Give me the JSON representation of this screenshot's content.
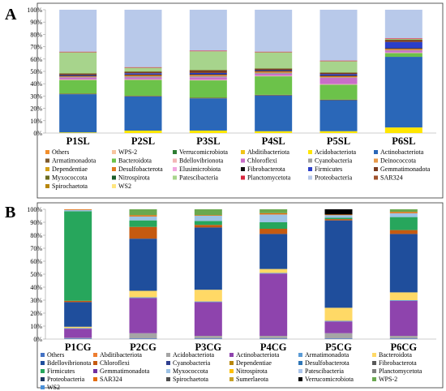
{
  "chart_data": [
    {
      "type": "bar",
      "stacked": true,
      "panel": "A",
      "categories": [
        "P1SL",
        "P2SL",
        "P3SL",
        "P4SL",
        "P5SL",
        "P6SL"
      ],
      "ylim": [
        0,
        100
      ],
      "yticks": [
        "0%",
        "10%",
        "20%",
        "30%",
        "40%",
        "50%",
        "60%",
        "70%",
        "80%",
        "90%",
        "100%"
      ],
      "series": [
        {
          "name": "Others",
          "color": "#f28e2b",
          "values": [
            0,
            0,
            0,
            0,
            0,
            0
          ]
        },
        {
          "name": "WPS-2",
          "color": "#f7c59f",
          "values": [
            0,
            0,
            0,
            0,
            0,
            0
          ]
        },
        {
          "name": "Verrucomicrobiota",
          "color": "#2e7d32",
          "values": [
            0,
            0,
            0,
            0,
            0,
            0
          ]
        },
        {
          "name": "Abditibacteriota",
          "color": "#f0c419",
          "values": [
            0,
            0,
            0,
            0,
            0,
            0
          ]
        },
        {
          "name": "Acidobacteriota",
          "color": "#ffe600",
          "values": [
            0.5,
            2,
            2,
            1.5,
            1.5,
            4.5
          ]
        },
        {
          "name": "Actinobacteriota",
          "color": "#2a67b8",
          "values": [
            31,
            28,
            26,
            29,
            25,
            57
          ]
        },
        {
          "name": "Armatimonadota",
          "color": "#7d5a2e",
          "values": [
            0.5,
            0.5,
            0.5,
            0.5,
            0.5,
            0
          ]
        },
        {
          "name": "Bacteroidota",
          "color": "#6cc24a",
          "values": [
            11,
            13,
            14,
            15,
            12,
            3
          ]
        },
        {
          "name": "Bdellovibrionota",
          "color": "#f2b6b6",
          "values": [
            0.5,
            0.5,
            0.5,
            0.5,
            0.5,
            0.5
          ]
        },
        {
          "name": "Chloroflexi",
          "color": "#c96ec9",
          "values": [
            1.5,
            1.5,
            2,
            1.5,
            5,
            1.5
          ]
        },
        {
          "name": "Cyanobacteria",
          "color": "#9e9e9e",
          "values": [
            0.5,
            1,
            1,
            1,
            0.5,
            0.5
          ]
        },
        {
          "name": "Deinococcota",
          "color": "#e89a4a",
          "values": [
            0,
            0,
            0,
            0,
            0,
            0
          ]
        },
        {
          "name": "Dependentiae",
          "color": "#d4a017",
          "values": [
            0,
            0,
            0,
            0,
            0,
            0
          ]
        },
        {
          "name": "Desulfobacterota",
          "color": "#e07b1f",
          "values": [
            0.5,
            1,
            1,
            1,
            1,
            1
          ]
        },
        {
          "name": "Elusimicrobiota",
          "color": "#f1a6e0",
          "values": [
            0,
            0,
            0,
            0,
            0,
            0
          ]
        },
        {
          "name": "Fibrobacterota",
          "color": "#111111",
          "values": [
            0.5,
            0.5,
            0.5,
            0.5,
            0.5,
            0.5
          ]
        },
        {
          "name": "Firmicutes",
          "color": "#2b3ec9",
          "values": [
            0.5,
            1,
            1,
            0.5,
            1,
            5
          ]
        },
        {
          "name": "Gemmatimonadota",
          "color": "#7a3b1f",
          "values": [
            1,
            1,
            2,
            1,
            1,
            1.5
          ]
        },
        {
          "name": "Myxococcota",
          "color": "#6b6b1f",
          "values": [
            0.5,
            0.5,
            0.5,
            0.5,
            0.5,
            0.5
          ]
        },
        {
          "name": "Nitrospirota",
          "color": "#1a5c2a",
          "values": [
            0,
            0,
            0,
            0,
            0,
            0
          ]
        },
        {
          "name": "Patescibacteria",
          "color": "#a7d48c",
          "values": [
            17,
            3,
            15,
            13,
            9,
            0.5
          ]
        },
        {
          "name": "Planctomycetota",
          "color": "#d7263d",
          "values": [
            0.5,
            0.5,
            0.5,
            0.5,
            0.5,
            0.5
          ]
        },
        {
          "name": "Proteobacteria",
          "color": "#b8c9ea",
          "values": [
            34,
            47,
            33,
            34,
            41,
            23
          ]
        },
        {
          "name": "SAR324",
          "color": "#a0522d",
          "values": [
            0,
            0,
            0,
            0,
            0,
            0
          ]
        },
        {
          "name": "Spirochaetota",
          "color": "#b8860b",
          "values": [
            0,
            0,
            0,
            0,
            0,
            0
          ]
        },
        {
          "name": "WS2",
          "color": "#ffe680",
          "values": [
            0,
            0,
            0,
            0,
            0,
            0
          ]
        }
      ]
    },
    {
      "type": "bar",
      "stacked": true,
      "panel": "B",
      "categories": [
        "P1CG",
        "P2CG",
        "P3CG",
        "P4CG",
        "P5CG",
        "P6CG"
      ],
      "ylim": [
        0,
        100
      ],
      "yticks": [
        "0%",
        "10%",
        "20%",
        "30%",
        "40%",
        "50%",
        "60%",
        "70%",
        "80%",
        "90%",
        "100%"
      ],
      "series": [
        {
          "name": "Others",
          "color": "#4472c4",
          "values": [
            0.5,
            0.5,
            0.5,
            0.5,
            0.5,
            0.5
          ]
        },
        {
          "name": "Abditibacteriota",
          "color": "#ed7d31",
          "values": [
            0,
            0,
            0,
            0,
            0,
            0
          ]
        },
        {
          "name": "Acidobacteriota",
          "color": "#a5a5a5",
          "values": [
            0.5,
            4,
            2,
            2,
            4,
            2
          ]
        },
        {
          "name": "Actinobacteriota",
          "color": "#8e44ad",
          "values": [
            7,
            27,
            26,
            48,
            9,
            27
          ]
        },
        {
          "name": "Armatimonadota",
          "color": "#5b9bd5",
          "values": [
            0.5,
            0.5,
            0.5,
            0.5,
            0.5,
            0.5
          ]
        },
        {
          "name": "Bacteroidota",
          "color": "#ffd966",
          "values": [
            1,
            5,
            9,
            3,
            10,
            6
          ]
        },
        {
          "name": "Bdellovibrionota",
          "color": "#1f4e9c",
          "values": [
            19,
            40,
            48,
            27,
            67,
            45
          ]
        },
        {
          "name": "Chloroflexi",
          "color": "#c55a11",
          "values": [
            1,
            9,
            2,
            4,
            1,
            3
          ]
        },
        {
          "name": "Cyanobacteria",
          "color": "#2f3f8f",
          "values": [
            0,
            0,
            0,
            0,
            0,
            0
          ]
        },
        {
          "name": "Dependentiae",
          "color": "#b8860b",
          "values": [
            0,
            0,
            0,
            0,
            0,
            0
          ]
        },
        {
          "name": "Desulfobacterota",
          "color": "#2e75b6",
          "values": [
            0,
            0,
            0,
            0,
            0,
            0
          ]
        },
        {
          "name": "Fibrobacterota",
          "color": "#595959",
          "values": [
            0,
            0,
            0,
            0,
            0,
            0
          ]
        },
        {
          "name": "Firmicutes",
          "color": "#27a65c",
          "values": [
            69,
            5,
            3,
            5,
            1,
            10
          ]
        },
        {
          "name": "Gemmatimonadota",
          "color": "#7030a0",
          "values": [
            0,
            0,
            0,
            0,
            0,
            0
          ]
        },
        {
          "name": "Myxococcota",
          "color": "#9dc3e6",
          "values": [
            1,
            3,
            4,
            6,
            2,
            3
          ]
        },
        {
          "name": "Nitrospirota",
          "color": "#ffc000",
          "values": [
            0,
            0,
            0,
            0,
            0,
            0
          ]
        },
        {
          "name": "Patescibacteria",
          "color": "#a9c4eb",
          "values": [
            0,
            0,
            0,
            0,
            0,
            0
          ]
        },
        {
          "name": "Planctomycetota",
          "color": "#7f7f7f",
          "values": [
            0,
            0,
            0,
            0,
            0,
            0
          ]
        },
        {
          "name": "Proteobacteria",
          "color": "#1f3864",
          "values": [
            0,
            0,
            0,
            0,
            0,
            0
          ]
        },
        {
          "name": "SAR324",
          "color": "#e46c0a",
          "values": [
            0.5,
            1,
            0.5,
            1,
            0.5,
            1
          ]
        },
        {
          "name": "Spirochaetota",
          "color": "#4d4d4d",
          "values": [
            0,
            0,
            0,
            0,
            0,
            0
          ]
        },
        {
          "name": "Sumerlaeota",
          "color": "#c9a227",
          "values": [
            0,
            0,
            0,
            0,
            0,
            0
          ]
        },
        {
          "name": "Verrucomicrobiota",
          "color": "#000000",
          "values": [
            0,
            0,
            0,
            0,
            4,
            0
          ]
        },
        {
          "name": "WPS-2",
          "color": "#6aa84f",
          "values": [
            0,
            4.5,
            4.5,
            3,
            0,
            2
          ]
        },
        {
          "name": "WS2",
          "color": "#4a90d9",
          "values": [
            0,
            0,
            0,
            0,
            0,
            0
          ]
        }
      ]
    }
  ],
  "panel_labels": [
    "A",
    "B"
  ]
}
